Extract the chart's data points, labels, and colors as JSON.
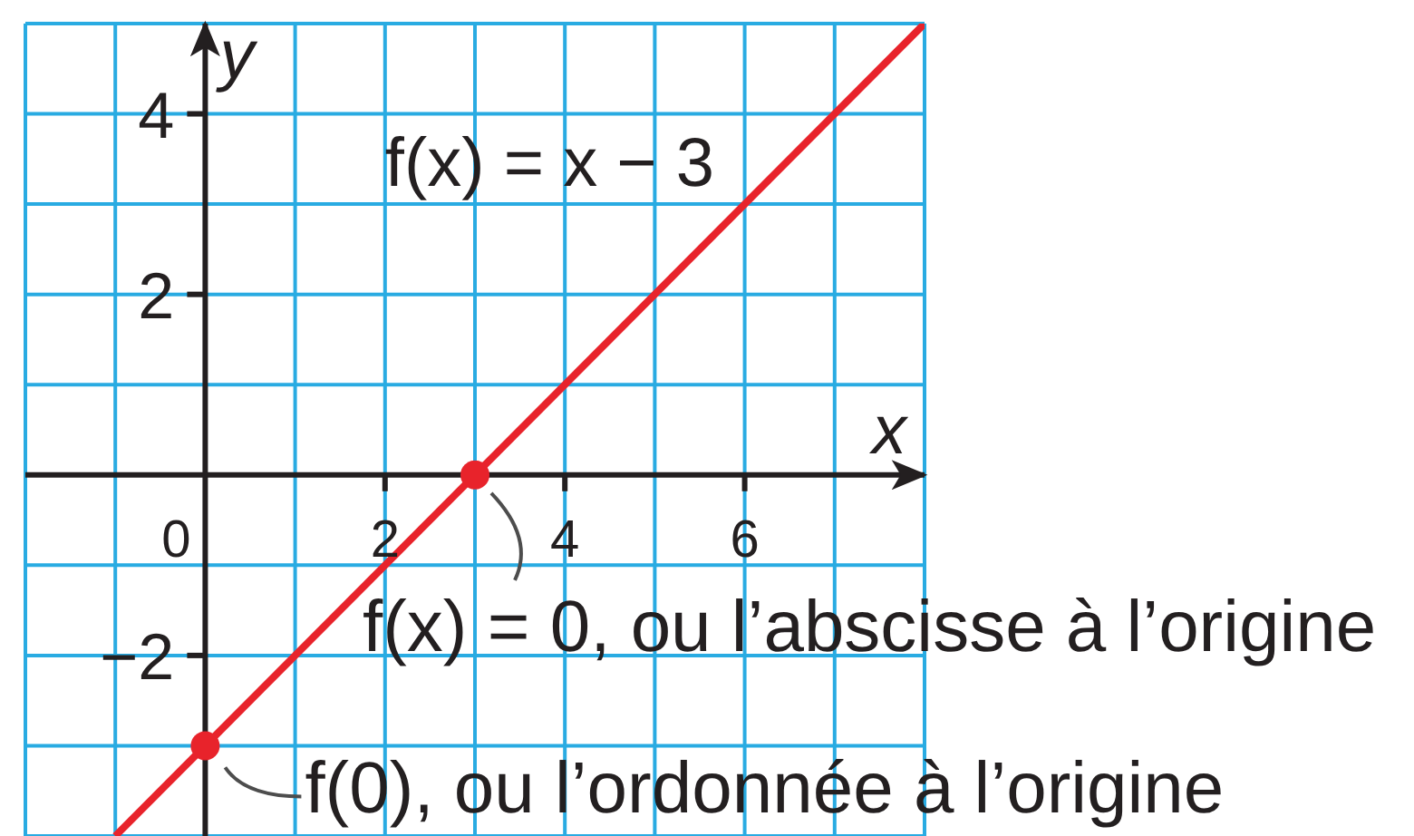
{
  "chart_data": {
    "type": "line",
    "xlabel": "x",
    "ylabel": "y",
    "xlim": [
      -2,
      8
    ],
    "ylim": [
      -4,
      5
    ],
    "xticks": [
      {
        "value": -2,
        "label": null
      },
      {
        "value": -1,
        "label": null
      },
      0,
      {
        "value": 1,
        "label": null
      },
      2,
      {
        "value": 3,
        "label": null
      },
      4,
      {
        "value": 5,
        "label": null
      },
      6,
      {
        "value": 7,
        "label": null
      },
      {
        "value": 8,
        "label": null
      }
    ],
    "yticks": [
      {
        "value": -3,
        "label": null
      },
      {
        "value": -2,
        "label": "−2"
      },
      {
        "value": -1,
        "label": null
      },
      {
        "value": 0,
        "label": null
      },
      {
        "value": 1,
        "label": null
      },
      2,
      {
        "value": 3,
        "label": null
      },
      4,
      {
        "value": 5,
        "label": null
      }
    ],
    "grid": true,
    "series": [
      {
        "name": "f(x) = x − 3",
        "color": "#e8232b",
        "x": [
          -1,
          8
        ],
        "values": [
          -4,
          5
        ],
        "marker": "none"
      },
      {
        "type": "scatter",
        "color": "#e8232b",
        "x": [
          0,
          3
        ],
        "values": [
          -3,
          0
        ],
        "marker": "circle"
      }
    ],
    "annotations": [
      {
        "text": "f(x) = 0, ou l’abscisse à l’origine",
        "x": 3,
        "y": 0
      },
      {
        "text": "f(0), ou l’ordonnée à l’origine",
        "x": 0,
        "y": -3
      }
    ]
  }
}
